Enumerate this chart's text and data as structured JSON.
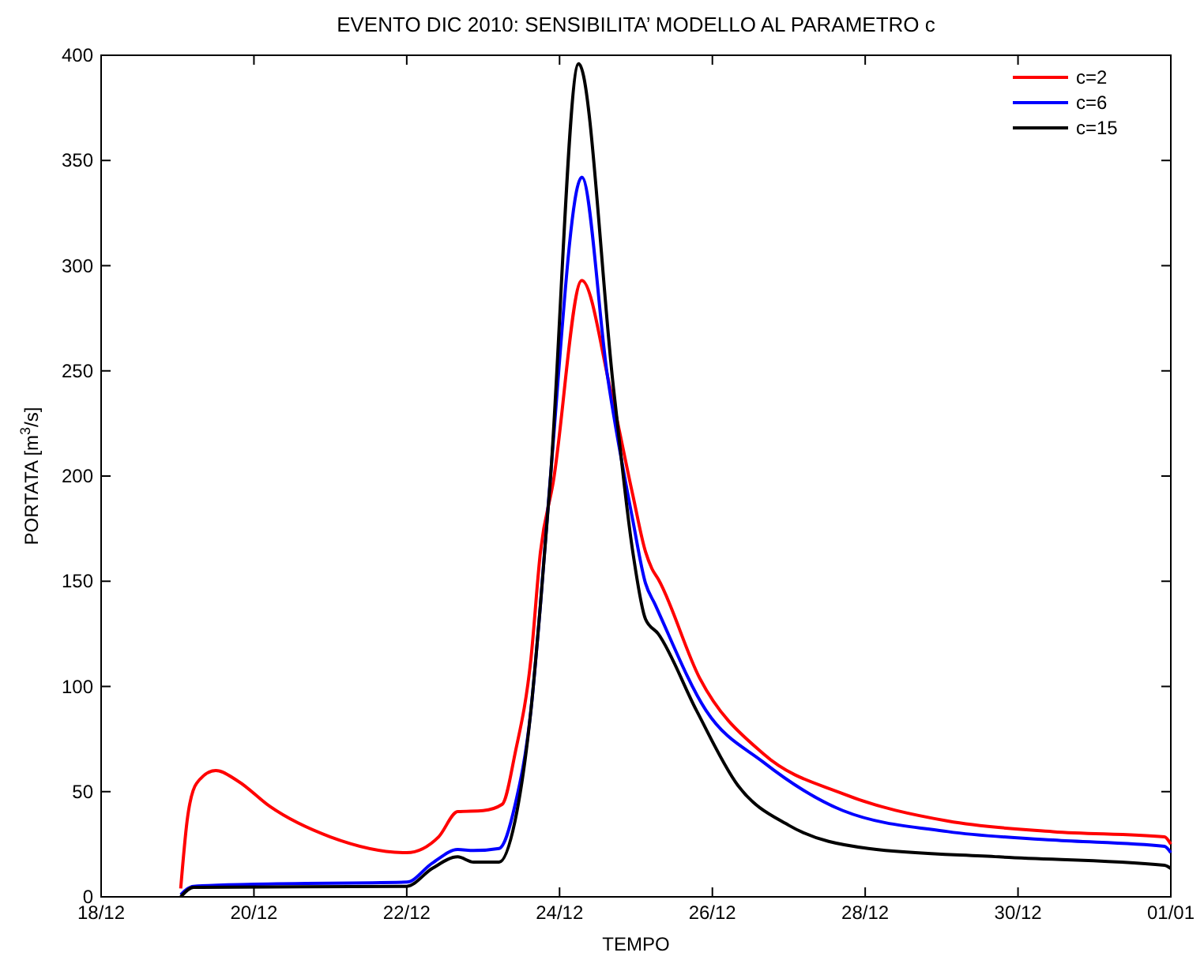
{
  "chart_data": {
    "type": "line",
    "title": "EVENTO DIC 2010: SENSIBILITA’ MODELLO AL PARAMETRO c",
    "xlabel": "TEMPO",
    "ylabel": "PORTATA [m$^{3}$/s]",
    "legend": "top right",
    "grid": false,
    "xlim": [
      "2010-12-18T00:00",
      "2011-01-01T00:00"
    ],
    "xticks": [
      {
        "value": "2010-12-18T00:00",
        "label": "18/12"
      },
      {
        "value": "2010-12-20T00:00",
        "label": "20/12"
      },
      {
        "value": "2010-12-22T00:00",
        "label": "22/12"
      },
      {
        "value": "2010-12-24T00:00",
        "label": "24/12"
      },
      {
        "value": "2010-12-26T00:00",
        "label": "26/12"
      },
      {
        "value": "2010-12-28T00:00",
        "label": "28/12"
      },
      {
        "value": "2010-12-30T00:00",
        "label": "30/12"
      },
      {
        "value": "2011-01-01T00:00",
        "label": "01/01"
      }
    ],
    "ylim": [
      0,
      400
    ],
    "yticks": [
      0,
      50,
      100,
      150,
      200,
      250,
      300,
      350,
      400
    ],
    "series": [
      {
        "name": "c=2",
        "color": "#ff0000",
        "x": [
          "2010-12-19T01:00",
          "2010-12-19T03:00",
          "2010-12-19T06:00",
          "2010-12-19T12:00",
          "2010-12-19T19:00",
          "2010-12-20T05:00",
          "2010-12-21T00:00",
          "2010-12-22T00:00",
          "2010-12-22T10:00",
          "2010-12-22T16:00",
          "2010-12-23T00:00",
          "2010-12-23T06:00",
          "2010-12-23T10:00",
          "2010-12-23T15:00",
          "2010-12-23T18:00",
          "2010-12-23T22:00",
          "2010-12-24T07:00",
          "2010-12-24T16:00",
          "2010-12-24T23:00",
          "2010-12-25T03:00",
          "2010-12-25T05:00",
          "2010-12-25T07:00",
          "2010-12-25T20:00",
          "2010-12-26T16:00",
          "2010-12-27T17:00",
          "2010-12-29T02:00",
          "2010-12-30T11:00",
          "2010-12-31T22:00",
          "2011-01-01T00:00"
        ],
        "values": [
          4,
          36,
          54,
          60,
          55,
          43,
          28.5,
          21,
          28.5,
          40.5,
          41,
          44,
          68,
          113,
          164,
          197,
          293,
          241,
          191,
          164,
          156,
          151,
          104,
          68,
          49,
          36,
          31,
          28.5,
          25
        ]
      },
      {
        "name": "c=6",
        "color": "#0000ff",
        "x": [
          "2010-12-19T01:00",
          "2010-12-19T05:00",
          "2010-12-20T00:00",
          "2010-12-22T00:00",
          "2010-12-22T08:00",
          "2010-12-22T16:00",
          "2010-12-22T21:00",
          "2010-12-23T05:00",
          "2010-12-23T10:00",
          "2010-12-23T15:00",
          "2010-12-23T18:00",
          "2010-12-23T21:00",
          "2010-12-24T07:00",
          "2010-12-24T15:00",
          "2010-12-24T23:00",
          "2010-12-25T03:00",
          "2010-12-25T06:00",
          "2010-12-25T22:00",
          "2010-12-26T16:00",
          "2010-12-27T17:00",
          "2010-12-29T02:00",
          "2010-12-30T11:00",
          "2010-12-31T22:00",
          "2011-01-01T00:00"
        ],
        "values": [
          1,
          5,
          6,
          7,
          16,
          22.5,
          22,
          23,
          43.5,
          88.6,
          139,
          197,
          342,
          248,
          179,
          149,
          139,
          88.6,
          64,
          41,
          31,
          27,
          24,
          21
        ]
      },
      {
        "name": "c=15",
        "color": "#000000",
        "x": [
          "2010-12-19T01:00",
          "2010-12-19T05:00",
          "2010-12-22T00:00",
          "2010-12-22T08:00",
          "2010-12-22T16:00",
          "2010-12-22T21:00",
          "2010-12-23T05:00",
          "2010-12-23T10:00",
          "2010-12-23T15:00",
          "2010-12-23T18:00",
          "2010-12-23T21:00",
          "2010-12-24T06:00",
          "2010-12-24T17:00",
          "2010-12-24T23:00",
          "2010-12-25T03:00",
          "2010-12-25T07:00",
          "2010-12-25T19:00",
          "2010-12-26T08:00",
          "2010-12-27T00:00",
          "2010-12-28T01:00",
          "2010-12-29T18:00",
          "2010-12-31T22:00",
          "2011-01-01T00:00"
        ],
        "values": [
          0,
          4.5,
          5,
          13.5,
          19,
          16.5,
          16.5,
          36,
          88.6,
          139,
          196,
          396,
          241,
          164,
          132,
          125,
          88.6,
          53,
          34,
          23,
          19,
          15,
          13.5
        ]
      }
    ]
  }
}
